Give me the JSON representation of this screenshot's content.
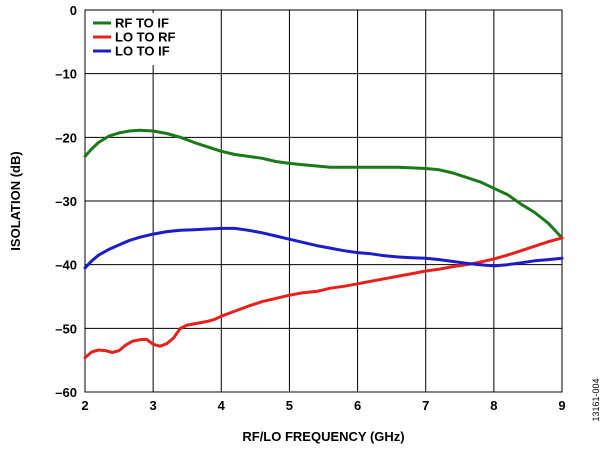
{
  "chart_data": {
    "type": "line",
    "xlabel": "RF/LO FREQUENCY (GHz)",
    "ylabel": "ISOLATION (dB)",
    "xlim": [
      2,
      9
    ],
    "ylim": [
      -60,
      0
    ],
    "x_ticks": [
      "2",
      "3",
      "4",
      "5",
      "6",
      "7",
      "8",
      "9"
    ],
    "y_ticks": [
      "0",
      "–10",
      "–20",
      "–30",
      "–40",
      "–50",
      "–60"
    ],
    "grid": true,
    "legend_position": "top-left",
    "figure_id": "13161-004",
    "series": [
      {
        "name": "RF TO IF",
        "color": "#1a7a1a",
        "x": [
          2.0,
          2.1,
          2.2,
          2.35,
          2.5,
          2.65,
          2.8,
          3.0,
          3.2,
          3.4,
          3.6,
          3.8,
          4.0,
          4.2,
          4.4,
          4.6,
          4.8,
          5.0,
          5.2,
          5.4,
          5.6,
          5.8,
          6.0,
          6.2,
          6.4,
          6.6,
          6.8,
          7.0,
          7.2,
          7.4,
          7.6,
          7.8,
          8.0,
          8.2,
          8.4,
          8.6,
          8.8,
          9.0
        ],
        "y": [
          -23.0,
          -21.8,
          -20.8,
          -19.8,
          -19.3,
          -19.0,
          -18.9,
          -19.0,
          -19.4,
          -20.0,
          -20.8,
          -21.5,
          -22.2,
          -22.7,
          -23.0,
          -23.3,
          -23.8,
          -24.1,
          -24.3,
          -24.5,
          -24.7,
          -24.7,
          -24.7,
          -24.7,
          -24.7,
          -24.7,
          -24.8,
          -24.9,
          -25.1,
          -25.6,
          -26.3,
          -27.0,
          -28.0,
          -29.0,
          -30.5,
          -31.8,
          -33.5,
          -35.8
        ]
      },
      {
        "name": "LO TO RF",
        "color": "#e8201b",
        "x": [
          2.0,
          2.1,
          2.2,
          2.3,
          2.4,
          2.5,
          2.6,
          2.7,
          2.8,
          2.9,
          3.0,
          3.1,
          3.2,
          3.3,
          3.4,
          3.5,
          3.6,
          3.7,
          3.8,
          3.9,
          4.0,
          4.2,
          4.4,
          4.6,
          4.8,
          5.0,
          5.2,
          5.4,
          5.6,
          5.8,
          6.0,
          6.2,
          6.4,
          6.6,
          6.8,
          7.0,
          7.2,
          7.4,
          7.6,
          7.8,
          8.0,
          8.2,
          8.4,
          8.6,
          8.8,
          9.0
        ],
        "y": [
          -54.6,
          -53.7,
          -53.4,
          -53.5,
          -53.8,
          -53.5,
          -52.6,
          -52.0,
          -51.8,
          -51.7,
          -52.5,
          -52.8,
          -52.4,
          -51.5,
          -50.0,
          -49.5,
          -49.3,
          -49.1,
          -48.9,
          -48.6,
          -48.1,
          -47.3,
          -46.5,
          -45.8,
          -45.3,
          -44.8,
          -44.4,
          -44.2,
          -43.7,
          -43.4,
          -43.0,
          -42.6,
          -42.2,
          -41.8,
          -41.4,
          -41.0,
          -40.7,
          -40.3,
          -40.0,
          -39.6,
          -39.1,
          -38.5,
          -37.8,
          -37.1,
          -36.4,
          -35.8
        ]
      },
      {
        "name": "LO TO IF",
        "color": "#1c1cc8",
        "x": [
          2.0,
          2.1,
          2.2,
          2.35,
          2.5,
          2.65,
          2.8,
          3.0,
          3.2,
          3.4,
          3.6,
          3.8,
          4.0,
          4.2,
          4.4,
          4.6,
          4.8,
          5.0,
          5.2,
          5.4,
          5.6,
          5.8,
          6.0,
          6.2,
          6.4,
          6.6,
          6.8,
          7.0,
          7.2,
          7.4,
          7.6,
          7.8,
          8.0,
          8.2,
          8.4,
          8.6,
          8.8,
          9.0
        ],
        "y": [
          -40.5,
          -39.4,
          -38.5,
          -37.6,
          -36.9,
          -36.2,
          -35.7,
          -35.2,
          -34.8,
          -34.6,
          -34.5,
          -34.4,
          -34.3,
          -34.3,
          -34.6,
          -35.0,
          -35.5,
          -36.0,
          -36.5,
          -37.0,
          -37.4,
          -37.8,
          -38.1,
          -38.3,
          -38.6,
          -38.8,
          -38.9,
          -39.0,
          -39.2,
          -39.5,
          -39.8,
          -40.0,
          -40.2,
          -40.0,
          -39.7,
          -39.4,
          -39.2,
          -39.0
        ]
      }
    ]
  }
}
